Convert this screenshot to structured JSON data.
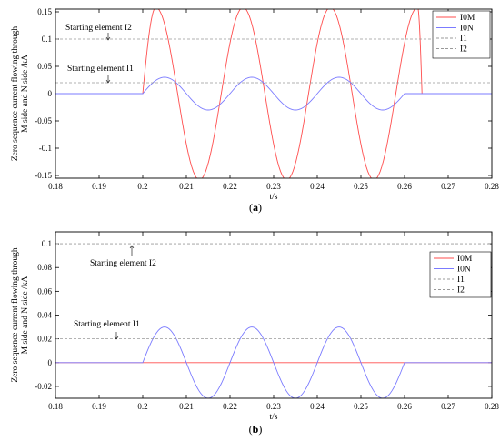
{
  "chart_data": [
    {
      "panel": "a",
      "caption": "(a)",
      "type": "line",
      "xlabel": "t/s",
      "ylabel": "Zero sequence current flowing through M side and N side /kA",
      "xlim": [
        0.18,
        0.28
      ],
      "ylim": [
        -0.155,
        0.155
      ],
      "xticks": [
        "0.18",
        "0.19",
        "0.2",
        "0.21",
        "0.22",
        "0.23",
        "0.24",
        "0.25",
        "0.26",
        "0.27",
        "0.28"
      ],
      "yticks": [
        "0.15",
        "0.1",
        "0.05",
        "0",
        "-0.05",
        "-0.1",
        "-0.15"
      ],
      "legend": [
        "I0M",
        "I0N",
        "I1",
        "I2"
      ],
      "legend_position": "top-right",
      "annotations": [
        "Starting element I2",
        "Starting element I1"
      ],
      "series": [
        {
          "name": "I0M",
          "color": "#ff4d4d",
          "x": [
            0.18,
            0.2,
            0.203,
            0.208,
            0.213,
            0.218,
            0.223,
            0.228,
            0.233,
            0.238,
            0.243,
            0.248,
            0.253,
            0.258,
            0.263,
            0.264,
            0.28
          ],
          "y": [
            0,
            0,
            0.158,
            0,
            -0.158,
            0,
            0.158,
            0,
            -0.158,
            0,
            0.158,
            0,
            -0.158,
            0,
            0.158,
            0,
            0
          ]
        },
        {
          "name": "I0N",
          "color": "#7b7bff",
          "x": [
            0.18,
            0.2,
            0.205,
            0.21,
            0.215,
            0.22,
            0.225,
            0.23,
            0.235,
            0.24,
            0.245,
            0.25,
            0.255,
            0.26,
            0.28
          ],
          "y": [
            0,
            0,
            0.03,
            0,
            -0.03,
            0,
            0.03,
            0,
            -0.03,
            0,
            0.03,
            0,
            -0.03,
            0,
            0
          ]
        },
        {
          "name": "I1",
          "color": "#999999",
          "x": [
            0.18,
            0.28
          ],
          "y": [
            0.02,
            0.02
          ]
        },
        {
          "name": "I2",
          "color": "#999999",
          "x": [
            0.18,
            0.28
          ],
          "y": [
            0.1,
            0.1
          ]
        }
      ]
    },
    {
      "panel": "b",
      "caption": "(b)",
      "type": "line",
      "xlabel": "t/s",
      "ylabel": "Zero sequence current flowing through M side and N side /kA",
      "xlim": [
        0.18,
        0.28
      ],
      "ylim": [
        -0.03,
        0.11
      ],
      "xticks": [
        "0.18",
        "0.19",
        "0.2",
        "0.21",
        "0.22",
        "0.23",
        "0.24",
        "0.25",
        "0.26",
        "0.27",
        "0.28"
      ],
      "yticks": [
        "0.1",
        "0.08",
        "0.06",
        "0.04",
        "0.02",
        "0",
        "-0.02"
      ],
      "legend": [
        "I0M",
        "I0N",
        "I1",
        "I2"
      ],
      "legend_position": "right",
      "annotations": [
        "Starting element I2",
        "Starting element I1"
      ],
      "series": [
        {
          "name": "I0M",
          "color": "#ff4d4d",
          "x": [
            0.18,
            0.28
          ],
          "y": [
            0,
            0
          ]
        },
        {
          "name": "I0N",
          "color": "#7b7bff",
          "x": [
            0.18,
            0.2,
            0.205,
            0.21,
            0.215,
            0.22,
            0.225,
            0.23,
            0.235,
            0.24,
            0.245,
            0.25,
            0.255,
            0.26,
            0.28
          ],
          "y": [
            0,
            0,
            0.03,
            0,
            -0.03,
            0,
            0.03,
            0,
            -0.03,
            0,
            0.03,
            0,
            -0.03,
            0,
            0
          ]
        },
        {
          "name": "I1",
          "color": "#999999",
          "x": [
            0.18,
            0.28
          ],
          "y": [
            0.02,
            0.02
          ]
        },
        {
          "name": "I2",
          "color": "#999999",
          "x": [
            0.18,
            0.28
          ],
          "y": [
            0.1,
            0.1
          ]
        }
      ]
    }
  ]
}
